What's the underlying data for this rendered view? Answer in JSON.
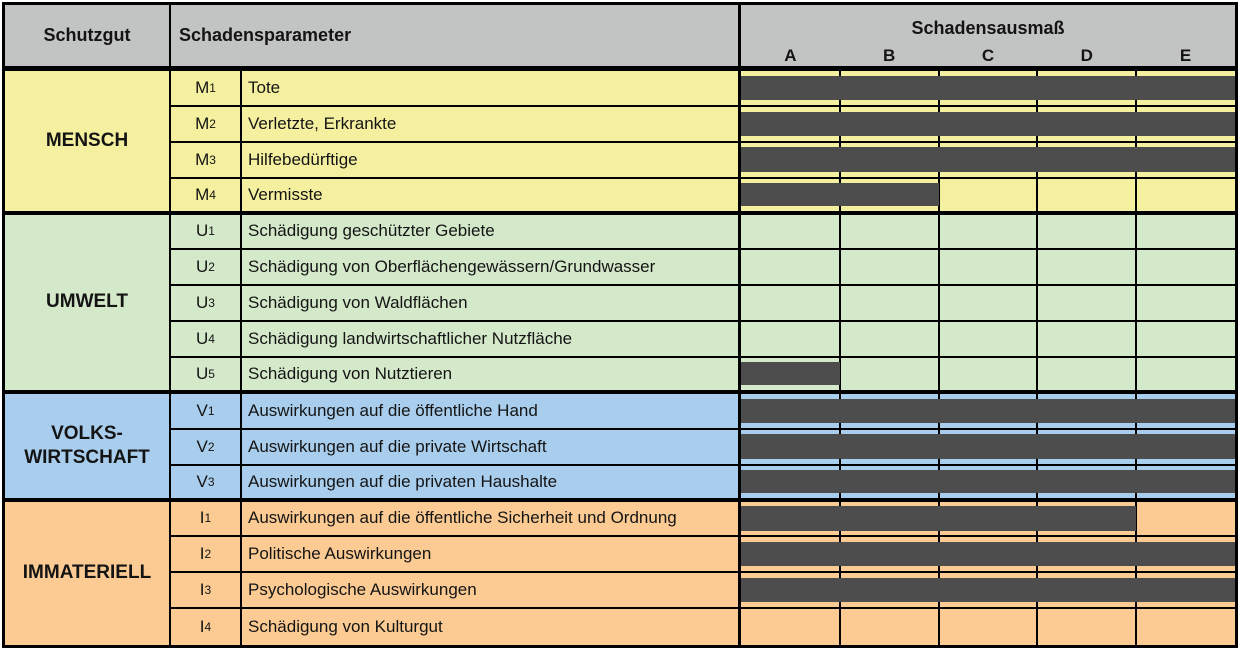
{
  "header": {
    "schutzgut": "Schutzgut",
    "schadensparameter": "Schadensparameter",
    "schadensausmass": "Schadensausmaß",
    "scale": [
      "A",
      "B",
      "C",
      "D",
      "E"
    ]
  },
  "colors": {
    "header": "#c2c3c3",
    "bar": "#4d4d4d",
    "mensch": "#f5f0a0",
    "umwelt": "#d4e8ca",
    "volkswirtschaft": "#a9cdec",
    "immateriell": "#fbcb93"
  },
  "groups": [
    {
      "id": "mensch",
      "label": "MENSCH",
      "color": "#f5f0a0",
      "rows": [
        {
          "code": "M",
          "sub": "1",
          "label": "Tote",
          "extent_from": "A",
          "extent_to": "E"
        },
        {
          "code": "M",
          "sub": "2",
          "label": "Verletzte, Erkrankte",
          "extent_from": "A",
          "extent_to": "E"
        },
        {
          "code": "M",
          "sub": "3",
          "label": "Hilfebedürftige",
          "extent_from": "A",
          "extent_to": "E"
        },
        {
          "code": "M",
          "sub": "4",
          "label": "Vermisste",
          "extent_from": "A",
          "extent_to": "B"
        }
      ]
    },
    {
      "id": "umwelt",
      "label": "UMWELT",
      "color": "#d4e8ca",
      "rows": [
        {
          "code": "U",
          "sub": "1",
          "label": "Schädigung geschützter Gebiete",
          "extent_from": null,
          "extent_to": null
        },
        {
          "code": "U",
          "sub": "2",
          "label": "Schädigung von Oberflächengewässern/Grundwasser",
          "extent_from": null,
          "extent_to": null
        },
        {
          "code": "U",
          "sub": "3",
          "label": "Schädigung von Waldflächen",
          "extent_from": null,
          "extent_to": null
        },
        {
          "code": "U",
          "sub": "4",
          "label": "Schädigung landwirtschaftlicher Nutzfläche",
          "extent_from": null,
          "extent_to": null
        },
        {
          "code": "U",
          "sub": "5",
          "label": "Schädigung von Nutztieren",
          "extent_from": "A",
          "extent_to": "A"
        }
      ]
    },
    {
      "id": "volkswirtschaft",
      "label": "VOLKS-\nWIRTSCHAFT",
      "color": "#a9cdec",
      "rows": [
        {
          "code": "V",
          "sub": "1",
          "label": "Auswirkungen auf die öffentliche Hand",
          "extent_from": "A",
          "extent_to": "E"
        },
        {
          "code": "V",
          "sub": "2",
          "label": "Auswirkungen auf die private Wirtschaft",
          "extent_from": "A",
          "extent_to": "E"
        },
        {
          "code": "V",
          "sub": "3",
          "label": "Auswirkungen auf die privaten Haushalte",
          "extent_from": "A",
          "extent_to": "E"
        }
      ]
    },
    {
      "id": "immateriell",
      "label": "IMMATERIELL",
      "color": "#fbcb93",
      "rows": [
        {
          "code": "I",
          "sub": "1",
          "label": "Auswirkungen auf die öffentliche Sicherheit und Ordnung",
          "extent_from": "A",
          "extent_to": "D"
        },
        {
          "code": "I",
          "sub": "2",
          "label": "Politische Auswirkungen",
          "extent_from": "A",
          "extent_to": "E"
        },
        {
          "code": "I",
          "sub": "3",
          "label": "Psychologische Auswirkungen",
          "extent_from": "A",
          "extent_to": "E"
        },
        {
          "code": "I",
          "sub": "4",
          "label": "Schädigung von Kulturgut",
          "extent_from": null,
          "extent_to": null
        }
      ]
    }
  ]
}
